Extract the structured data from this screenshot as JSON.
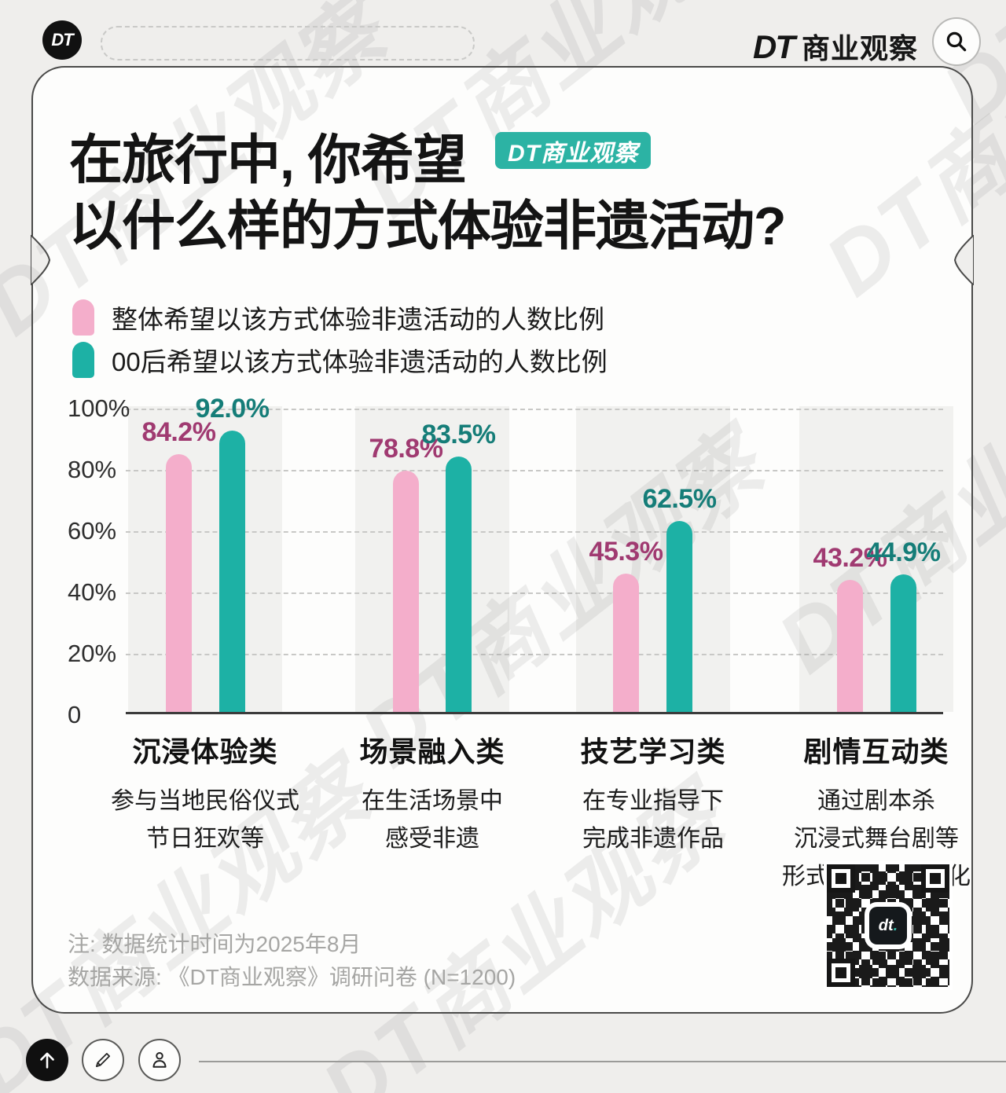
{
  "header": {
    "logo_text": "DT",
    "brand_dt": "DT",
    "brand_name": "商业观察"
  },
  "title": {
    "line1": "在旅行中, 你希望",
    "line2": "以什么样的方式体验非遗活动?",
    "badge": "DT商业观察"
  },
  "chart_data": {
    "type": "bar",
    "title": "在旅行中, 你希望以什么样的方式体验非遗活动?",
    "legend_position": "top-left",
    "grid": "dashed horizontal",
    "y_axis": {
      "min": 0,
      "max": 100,
      "ticks": [
        "100%",
        "80%",
        "60%",
        "40%",
        "20%",
        "0"
      ]
    },
    "categories": [
      {
        "name": "沉浸体验类",
        "desc": [
          "参与当地民俗仪式",
          "节日狂欢等"
        ]
      },
      {
        "name": "场景融入类",
        "desc": [
          "在生活场景中",
          "感受非遗"
        ]
      },
      {
        "name": "技艺学习类",
        "desc": [
          "在专业指导下",
          "完成非遗作品"
        ]
      },
      {
        "name": "剧情互动类",
        "desc": [
          "通过剧本杀",
          "沉浸式舞台剧等",
          "形式了解非遗文化"
        ]
      }
    ],
    "series": [
      {
        "name": "整体希望以该方式体验非遗活动的人数比例",
        "color": "#f4aecb",
        "label_color": "#a03a71",
        "values": [
          84.2,
          78.8,
          45.3,
          43.2
        ],
        "labels": [
          "84.2%",
          "78.8%",
          "45.3%",
          "43.2%"
        ]
      },
      {
        "name": "00后希望以该方式体验非遗活动的人数比例",
        "color": "#1db1a5",
        "label_color": "#157d78",
        "values": [
          92.0,
          83.5,
          62.5,
          44.9
        ],
        "labels": [
          "92.0%",
          "83.5%",
          "62.5%",
          "44.9%"
        ]
      }
    ]
  },
  "footer": {
    "note1": "注: 数据统计时间为2025年8月",
    "note2": "数据来源: 《DT商业观察》调研问卷 (N=1200)",
    "qr_logo": "dt",
    "qr_logo_dot": "."
  },
  "toolbar_icons": [
    "back-to-top",
    "edit",
    "profile"
  ],
  "watermark": {
    "text": "DT商业观察"
  },
  "colors": {
    "page_bg": "#efeeec",
    "card_bg": "#fdfdfc",
    "brand_teal": "#2cb3a4",
    "bar_pink": "#f4aecb",
    "bar_teal": "#1db1a5",
    "pink_label": "#a03a71",
    "teal_label": "#157d78",
    "band_gray": "#f1f1ef"
  }
}
